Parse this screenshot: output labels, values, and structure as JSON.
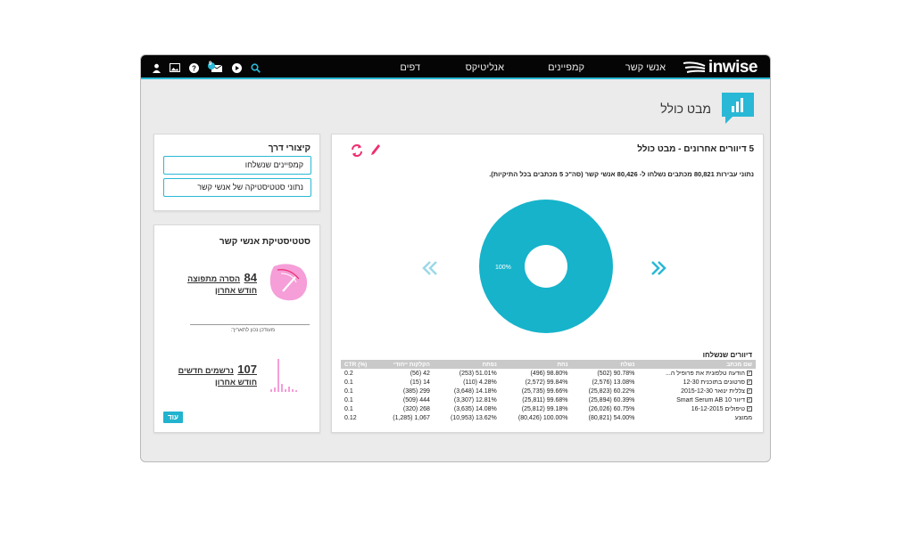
{
  "brand": {
    "logo_text": "inwise",
    "accent": "#29b8d6",
    "pink": "#f59ed8",
    "chart_color": "#16b3cb"
  },
  "nav": {
    "items": [
      "אנשי קשר",
      "קמפיינים",
      "אנליטיקס",
      "דפים"
    ]
  },
  "topbar": {
    "notification_count": "9"
  },
  "page": {
    "title": "מבט כולל"
  },
  "shortcuts": {
    "title": "קיצורי דרך",
    "buttons": [
      "קמפיינים שנשלחו",
      "נתוני סטטיסטיקה של אנשי קשר"
    ]
  },
  "contact_stats": {
    "title": "סטטיסטיקת אנשי קשר",
    "unsubscribe": {
      "value": "84",
      "label1": "הסרה מתפוצה",
      "label2": "חודש אחרון"
    },
    "updated_label": "מעודכן נכון לתאריך:",
    "new_signups": {
      "value": "107",
      "label1": "נרשמים חדשים",
      "label2": "חודש אחרון"
    },
    "more_label": "עוד"
  },
  "mailings": {
    "title": "5 דיוורים אחרונים - מבט כולל",
    "summary": "נתוני עבירות 80,821 מכתבים נשלחו ל- 80,426 אנשי קשר (סה\"כ 5 מכתבים בכל התיקיות).",
    "donut_label": "100%",
    "table_title": "דיוורים שנשלחו",
    "columns": [
      "CTR (%)",
      "הקלקות ייחודי",
      "נפתח",
      "נחת",
      "נשלח",
      "שם מכתב"
    ],
    "rows": [
      [
        "0.2",
        "(56) 42",
        "(253) 51.01%",
        "(496) 98.80%",
        "(502) 90.78%",
        "הודעה טלפונית את פרופיל ה..."
      ],
      [
        "0.1",
        "(15) 14",
        "(110) 4.28%",
        "(2,572) 99.84%",
        "(2,576) 13.08%",
        "סרטונים בתוכנית 12-30"
      ],
      [
        "0.1",
        "(385) 299",
        "(3,648) 14.18%",
        "(25,735) 99.66%",
        "(25,823) 60.22%",
        "צללית ינואר 2015-12-30"
      ],
      [
        "0.1",
        "(509) 444",
        "(3,307) 12.81%",
        "(25,811) 99.68%",
        "(25,894) 60.39%",
        "דיוור 10 Smart Serum AB"
      ],
      [
        "0.1",
        "(320) 268",
        "(3,635) 14.08%",
        "(25,812) 99.18%",
        "(26,026) 60.75%",
        "טיפולים 16-12-2015"
      ],
      [
        "0.12",
        "(1,285) 1,067",
        "(10,953) 13.62%",
        "(80,426) 100.00%",
        "(80,821) 54.00%",
        "ממוצע"
      ]
    ]
  },
  "chart_data": {
    "type": "pie",
    "categories": [
      ""
    ],
    "values": [
      100
    ],
    "labels": [
      "100%"
    ]
  }
}
